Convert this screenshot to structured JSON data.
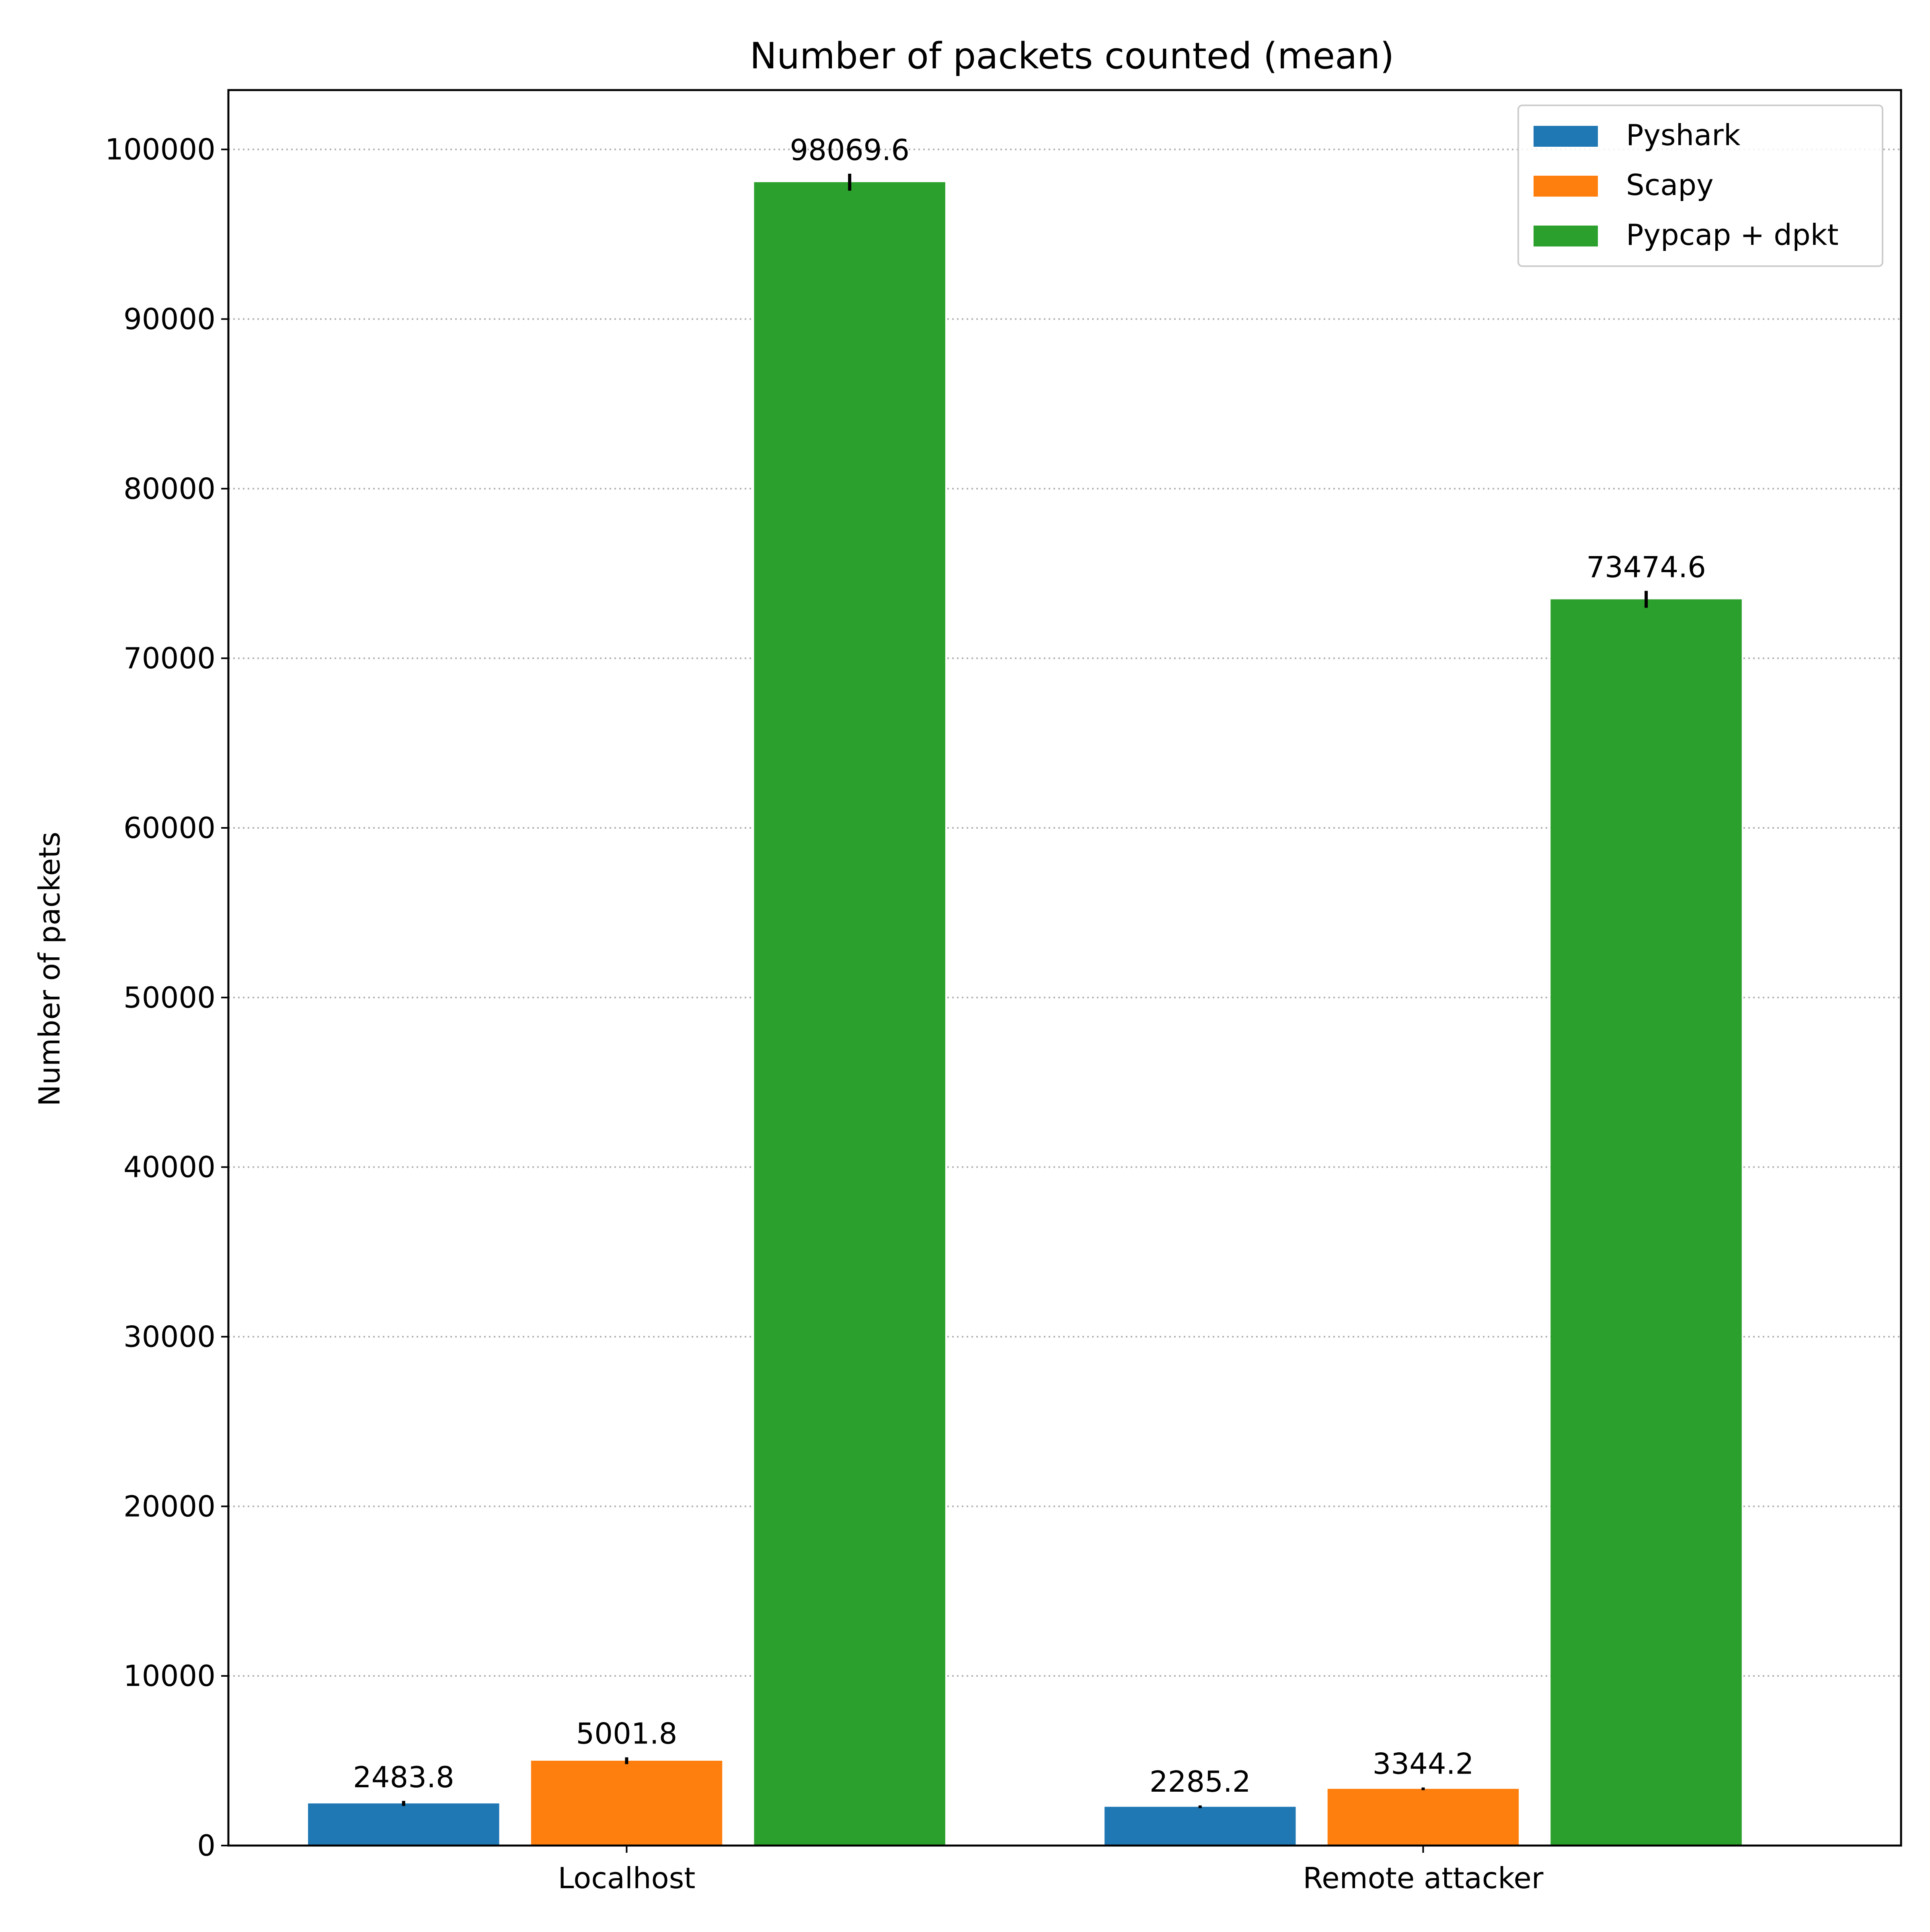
{
  "chart_data": {
    "type": "bar",
    "title": "Number of packets counted (mean)",
    "xlabel": "",
    "ylabel": "Number of packets",
    "categories": [
      "Localhost",
      "Remote attacker"
    ],
    "series": [
      {
        "name": "Pyshark",
        "color": "#1f77b4",
        "values": [
          2483.8,
          2285.2
        ],
        "errors": [
          150,
          80
        ],
        "labels": [
          "2483.8",
          "2285.2"
        ]
      },
      {
        "name": "Scapy",
        "color": "#ff7f0e",
        "values": [
          5001.8,
          3344.2
        ],
        "errors": [
          200,
          80
        ],
        "labels": [
          "5001.8",
          "3344.2"
        ]
      },
      {
        "name": "Pypcap + dpkt",
        "color": "#2ca02c",
        "values": [
          98069.6,
          73474.6
        ],
        "errors": [
          500,
          500
        ],
        "labels": [
          "98069.6",
          "73474.6"
        ]
      }
    ],
    "ylim": [
      0,
      103500
    ],
    "yticks": [
      0,
      10000,
      20000,
      30000,
      40000,
      50000,
      60000,
      70000,
      80000,
      90000,
      100000
    ],
    "ytick_labels": [
      "0",
      "10000",
      "20000",
      "30000",
      "40000",
      "50000",
      "60000",
      "70000",
      "80000",
      "90000",
      "100000"
    ],
    "grid": "y-dotted",
    "legend_position": "top-right"
  }
}
